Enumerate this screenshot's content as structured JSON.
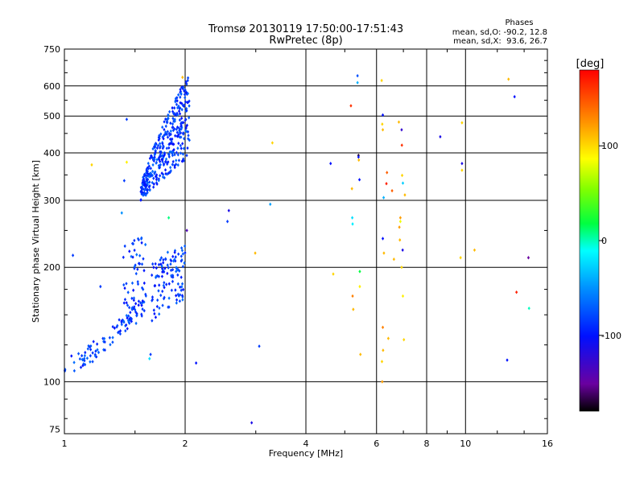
{
  "chart_data": {
    "type": "scatter",
    "title": "Tromsø 20130119 17:50:00-17:51:43",
    "subtitle": "RwPretec (8p)",
    "xlabel": "Frequency [MHz]",
    "ylabel": "Stationary phase Virtual Height [km]",
    "x_scale": "log",
    "y_scale": "log",
    "xlim": [
      1,
      16
    ],
    "ylim": [
      73,
      750
    ],
    "x_ticks": [
      1,
      2,
      4,
      6,
      8,
      10,
      16
    ],
    "y_ticks": [
      75,
      100,
      200,
      300,
      400,
      500,
      600,
      750
    ],
    "phases_legend": {
      "title": "Phases",
      "line1": "mean, sd,O: -90.2, 12.8",
      "line2": "mean, sd,X:  93.6, 26.7"
    },
    "colorbar": {
      "label": "[deg]",
      "range": [
        -180,
        180
      ],
      "ticks": [
        100,
        0,
        -100
      ],
      "colormap": [
        "#000000",
        "#7a00a8",
        "#0000ff",
        "#00ffff",
        "#00ff00",
        "#ffff00",
        "#ff8000",
        "#ff0000"
      ]
    },
    "grid": true,
    "point_groups": [
      {
        "name": "E-region trace",
        "x_range": [
          1.0,
          1.6
        ],
        "y_range": [
          110,
          170
        ],
        "phase": -100,
        "count": 90
      },
      {
        "name": "E-region trace upper",
        "x_range": [
          1.4,
          1.6
        ],
        "y_range": [
          140,
          240
        ],
        "phase": -100,
        "count": 60
      },
      {
        "name": "F1 cluster",
        "x_range": [
          1.65,
          2.0
        ],
        "y_range": [
          160,
          250
        ],
        "phase": -100,
        "count": 110
      },
      {
        "name": "F2 cluster",
        "x_range": [
          1.55,
          2.05
        ],
        "y_range": [
          300,
          640
        ],
        "phase": -100,
        "count": 380
      }
    ],
    "scattered_points": [
      {
        "x": 1.05,
        "y": 215,
        "phase": -100
      },
      {
        "x": 1.17,
        "y": 372,
        "phase": 110
      },
      {
        "x": 1.23,
        "y": 178,
        "phase": -100
      },
      {
        "x": 1.43,
        "y": 490,
        "phase": -100
      },
      {
        "x": 1.41,
        "y": 338,
        "phase": -100
      },
      {
        "x": 1.43,
        "y": 378,
        "phase": 100
      },
      {
        "x": 1.39,
        "y": 278,
        "phase": -80
      },
      {
        "x": 1.63,
        "y": 115,
        "phase": -30
      },
      {
        "x": 1.64,
        "y": 118,
        "phase": -100
      },
      {
        "x": 1.82,
        "y": 270,
        "phase": 10
      },
      {
        "x": 1.97,
        "y": 632,
        "phase": 120
      },
      {
        "x": 2.02,
        "y": 250,
        "phase": -140
      },
      {
        "x": 2.13,
        "y": 112,
        "phase": -110
      },
      {
        "x": 2.55,
        "y": 264,
        "phase": -100
      },
      {
        "x": 2.57,
        "y": 282,
        "phase": -120
      },
      {
        "x": 2.93,
        "y": 78,
        "phase": -120
      },
      {
        "x": 2.99,
        "y": 218,
        "phase": 120
      },
      {
        "x": 3.06,
        "y": 124,
        "phase": -100
      },
      {
        "x": 3.26,
        "y": 293,
        "phase": -70
      },
      {
        "x": 3.3,
        "y": 425,
        "phase": 110
      },
      {
        "x": 4.61,
        "y": 375,
        "phase": -110
      },
      {
        "x": 4.68,
        "y": 192,
        "phase": 110
      },
      {
        "x": 5.18,
        "y": 532,
        "phase": 165
      },
      {
        "x": 5.21,
        "y": 322,
        "phase": 120
      },
      {
        "x": 5.22,
        "y": 270,
        "phase": -30
      },
      {
        "x": 5.23,
        "y": 260,
        "phase": -20
      },
      {
        "x": 5.23,
        "y": 168,
        "phase": 140
      },
      {
        "x": 5.25,
        "y": 155,
        "phase": 120
      },
      {
        "x": 5.38,
        "y": 638,
        "phase": -95
      },
      {
        "x": 5.38,
        "y": 612,
        "phase": -60
      },
      {
        "x": 5.41,
        "y": 394,
        "phase": -170
      },
      {
        "x": 5.41,
        "y": 390,
        "phase": -110
      },
      {
        "x": 5.42,
        "y": 383,
        "phase": 120
      },
      {
        "x": 5.44,
        "y": 340,
        "phase": -110
      },
      {
        "x": 5.45,
        "y": 195,
        "phase": 20
      },
      {
        "x": 5.45,
        "y": 178,
        "phase": 100
      },
      {
        "x": 5.47,
        "y": 118,
        "phase": 120
      },
      {
        "x": 6.18,
        "y": 620,
        "phase": 110
      },
      {
        "x": 6.22,
        "y": 503,
        "phase": -110
      },
      {
        "x": 6.2,
        "y": 476,
        "phase": 110
      },
      {
        "x": 6.22,
        "y": 460,
        "phase": 120
      },
      {
        "x": 6.25,
        "y": 305,
        "phase": -60
      },
      {
        "x": 6.22,
        "y": 238,
        "phase": -110
      },
      {
        "x": 6.26,
        "y": 218,
        "phase": 120
      },
      {
        "x": 6.22,
        "y": 139,
        "phase": 140
      },
      {
        "x": 6.23,
        "y": 121,
        "phase": 120
      },
      {
        "x": 6.19,
        "y": 113,
        "phase": 110
      },
      {
        "x": 6.2,
        "y": 100,
        "phase": 130
      },
      {
        "x": 6.37,
        "y": 355,
        "phase": 150
      },
      {
        "x": 6.35,
        "y": 332,
        "phase": 170
      },
      {
        "x": 6.42,
        "y": 130,
        "phase": 120
      },
      {
        "x": 6.56,
        "y": 318,
        "phase": 150
      },
      {
        "x": 6.63,
        "y": 210,
        "phase": 120
      },
      {
        "x": 6.82,
        "y": 482,
        "phase": 120
      },
      {
        "x": 6.93,
        "y": 460,
        "phase": -130
      },
      {
        "x": 6.84,
        "y": 255,
        "phase": 130
      },
      {
        "x": 6.86,
        "y": 236,
        "phase": 120
      },
      {
        "x": 6.88,
        "y": 264,
        "phase": 90
      },
      {
        "x": 6.88,
        "y": 270,
        "phase": 130
      },
      {
        "x": 6.94,
        "y": 419,
        "phase": 165
      },
      {
        "x": 6.95,
        "y": 349,
        "phase": 110
      },
      {
        "x": 6.98,
        "y": 333,
        "phase": -40
      },
      {
        "x": 6.97,
        "y": 222,
        "phase": -120
      },
      {
        "x": 6.93,
        "y": 200,
        "phase": 110
      },
      {
        "x": 6.98,
        "y": 168,
        "phase": 100
      },
      {
        "x": 7.02,
        "y": 129,
        "phase": 110
      },
      {
        "x": 7.06,
        "y": 310,
        "phase": 120
      },
      {
        "x": 8.65,
        "y": 441,
        "phase": -120
      },
      {
        "x": 9.8,
        "y": 375,
        "phase": -120
      },
      {
        "x": 9.8,
        "y": 480,
        "phase": 110
      },
      {
        "x": 9.8,
        "y": 360,
        "phase": 110
      },
      {
        "x": 9.72,
        "y": 212,
        "phase": 110
      },
      {
        "x": 10.53,
        "y": 222,
        "phase": 120
      },
      {
        "x": 12.8,
        "y": 625,
        "phase": 120
      },
      {
        "x": 12.7,
        "y": 114,
        "phase": -110
      },
      {
        "x": 13.25,
        "y": 562,
        "phase": -110
      },
      {
        "x": 13.4,
        "y": 172,
        "phase": 170
      },
      {
        "x": 14.35,
        "y": 212,
        "phase": -150
      },
      {
        "x": 14.4,
        "y": 156,
        "phase": 0
      }
    ]
  }
}
